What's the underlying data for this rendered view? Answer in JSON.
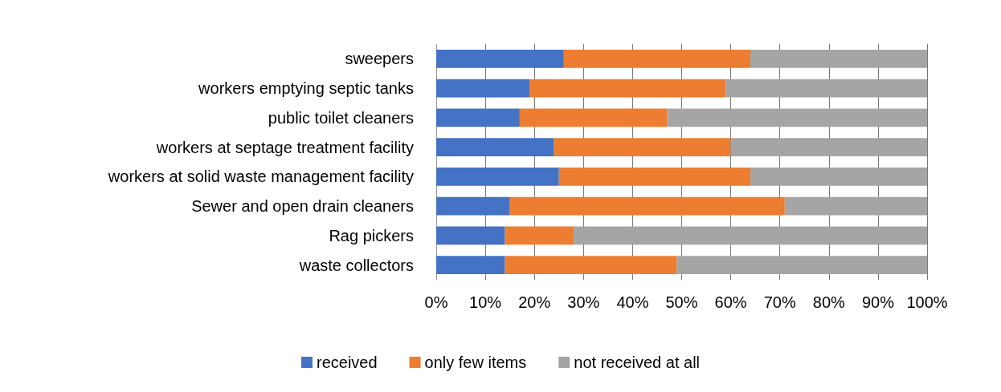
{
  "chart_data": {
    "type": "bar",
    "orientation": "horizontal",
    "stacked": true,
    "categories": [
      "sweepers",
      "workers emptying septic tanks",
      "public toilet cleaners",
      "workers at septage treatment facility",
      "workers at solid waste management facility",
      "Sewer and open drain cleaners",
      "Rag pickers",
      "waste collectors"
    ],
    "series": [
      {
        "name": "received",
        "color": "#4472c4",
        "values": [
          26,
          19,
          17,
          24,
          25,
          15,
          14,
          14
        ]
      },
      {
        "name": "only few items",
        "color": "#ed7d31",
        "values": [
          38,
          40,
          30,
          36,
          39,
          56,
          14,
          35
        ]
      },
      {
        "name": "not received at all",
        "color": "#a5a5a5",
        "values": [
          36,
          41,
          53,
          40,
          36,
          29,
          72,
          51
        ]
      }
    ],
    "xlim": [
      0,
      100
    ],
    "xticks": [
      {
        "value": 0,
        "label": "0%"
      },
      {
        "value": 10,
        "label": "10%"
      },
      {
        "value": 20,
        "label": "20%"
      },
      {
        "value": 30,
        "label": "30%"
      },
      {
        "value": 40,
        "label": "40%"
      },
      {
        "value": 50,
        "label": "50%"
      },
      {
        "value": 60,
        "label": "60%"
      },
      {
        "value": 70,
        "label": "70%"
      },
      {
        "value": 80,
        "label": "80%"
      },
      {
        "value": 90,
        "label": "90%"
      },
      {
        "value": 100,
        "label": "100%"
      }
    ],
    "grid": "x",
    "legend": "bottom"
  }
}
